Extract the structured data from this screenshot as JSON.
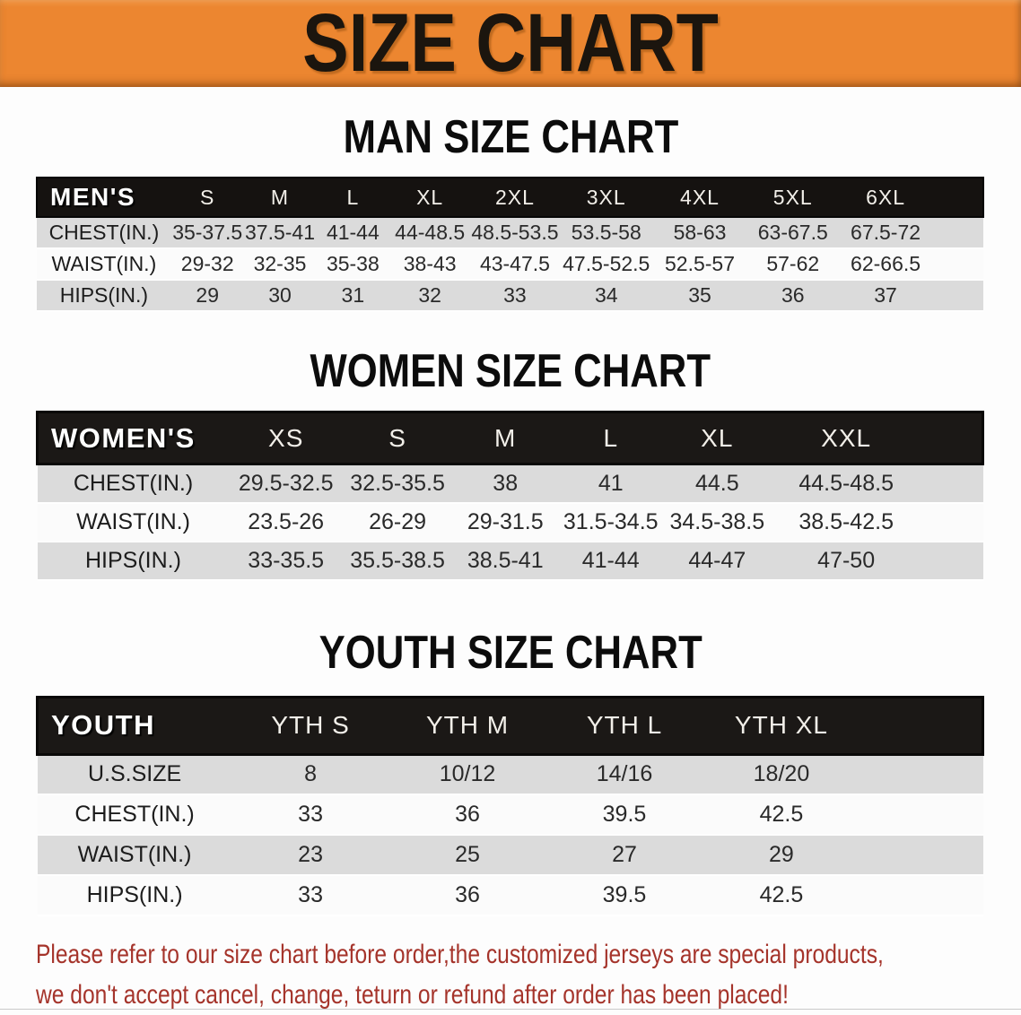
{
  "banner": {
    "title": "SIZE CHART",
    "bg_color": "#EC8630",
    "text_color": "#1B150E"
  },
  "colors": {
    "header_bar_black": "#1B1816",
    "row_stripe_gray": "#DBDBDB",
    "row_plain_white": "#FBFBFB",
    "disclaimer_red": "#A5342B"
  },
  "sections": {
    "men": {
      "title": "MAN SIZE CHART",
      "table": {
        "header": {
          "label": "MEN'S",
          "sizes": [
            "S",
            "M",
            "L",
            "XL",
            "2XL",
            "3XL",
            "4XL",
            "5XL",
            "6XL"
          ]
        },
        "rows": [
          {
            "label": "CHEST(IN.)",
            "values": [
              "35-37.5",
              "37.5-41",
              "41-44",
              "44-48.5",
              "48.5-53.5",
              "53.5-58",
              "58-63",
              "63-67.5",
              "67.5-72"
            ]
          },
          {
            "label": "WAIST(IN.)",
            "values": [
              "29-32",
              "32-35",
              "35-38",
              "38-43",
              "43-47.5",
              "47.5-52.5",
              "52.5-57",
              "57-62",
              "62-66.5"
            ]
          },
          {
            "label": "HIPS(IN.)",
            "values": [
              "29",
              "30",
              "31",
              "32",
              "33",
              "34",
              "35",
              "36",
              "37"
            ]
          }
        ]
      }
    },
    "women": {
      "title": "WOMEN SIZE CHART",
      "table": {
        "header": {
          "label": "WOMEN'S",
          "sizes": [
            "XS",
            "S",
            "M",
            "L",
            "XL",
            "XXL"
          ]
        },
        "rows": [
          {
            "label": "CHEST(IN.)",
            "values": [
              "29.5-32.5",
              "32.5-35.5",
              "38",
              "41",
              "44.5",
              "44.5-48.5"
            ]
          },
          {
            "label": "WAIST(IN.)",
            "values": [
              "23.5-26",
              "26-29",
              "29-31.5",
              "31.5-34.5",
              "34.5-38.5",
              "38.5-42.5"
            ]
          },
          {
            "label": "HIPS(IN.)",
            "values": [
              "33-35.5",
              "35.5-38.5",
              "38.5-41",
              "41-44",
              "44-47",
              "47-50"
            ]
          }
        ]
      }
    },
    "youth": {
      "title": "YOUTH SIZE CHART",
      "table": {
        "header": {
          "label": "YOUTH",
          "sizes": [
            "YTH S",
            "YTH M",
            "YTH L",
            "YTH XL"
          ]
        },
        "rows": [
          {
            "label": "U.S.SIZE",
            "values": [
              "8",
              "10/12",
              "14/16",
              "18/20"
            ]
          },
          {
            "label": "CHEST(IN.)",
            "values": [
              "33",
              "36",
              "39.5",
              "42.5"
            ]
          },
          {
            "label": "WAIST(IN.)",
            "values": [
              "23",
              "25",
              "27",
              "29"
            ]
          },
          {
            "label": "HIPS(IN.)",
            "values": [
              "33",
              "36",
              "39.5",
              "42.5"
            ]
          }
        ]
      }
    }
  },
  "disclaimer": {
    "line1": "Please refer to our size chart before order,the customized jerseys are special products,",
    "line2": "we don't accept cancel, change, teturn or refund after order has been placed!"
  }
}
